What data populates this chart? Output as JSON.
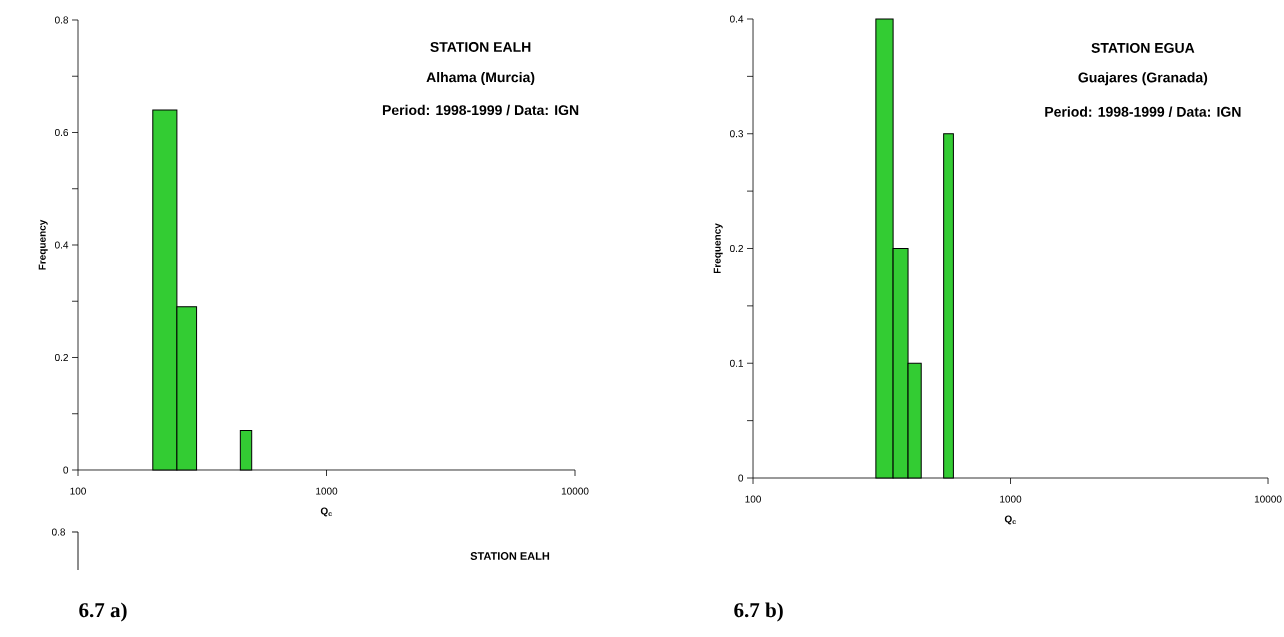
{
  "chart_data": [
    {
      "type": "histogram",
      "title": "STATION EALH",
      "subtitle": "Alhama (Murcia)",
      "xlabel": "Q$_{c}$",
      "ylabel": "Frequency",
      "annotations": [
        "Period: 1998-1999 / Data: IGN",
        "6.7 a)"
      ],
      "bins": [
        200,
        250,
        300,
        450,
        500
      ],
      "values": [
        0.64,
        0.29,
        0,
        0.07
      ],
      "color": "#33cc33",
      "log": "x",
      "xlim": [
        100,
        10000
      ],
      "xticks": [
        100,
        1000,
        10000
      ],
      "ylim": [
        0,
        0.8
      ],
      "yticks": [
        0,
        0.2,
        0.4,
        0.6,
        0.8
      ]
    },
    {
      "type": "histogram",
      "title": "STATION EGUA",
      "subtitle": "Guajares (Granada)",
      "xlabel": "Q$_{c}$",
      "ylabel": "Frequency",
      "annotations": [
        "Period: 1998-1999 / Data: IGN",
        "6.7 b)"
      ],
      "bins": [
        300,
        350,
        400,
        450,
        550,
        600
      ],
      "values": [
        0.4,
        0.2,
        0.1,
        0,
        0.3
      ],
      "color": "#33cc33",
      "log": "x",
      "xlim": [
        100,
        10000
      ],
      "xticks": [
        100,
        1000,
        10000
      ],
      "ylim": [
        0,
        0.4
      ],
      "yticks": [
        0,
        0.1,
        0.2,
        0.3,
        0.4
      ]
    },
    {
      "type": "other",
      "title": "STATION EALH",
      "annotations": [
        "0.8"
      ]
    }
  ]
}
